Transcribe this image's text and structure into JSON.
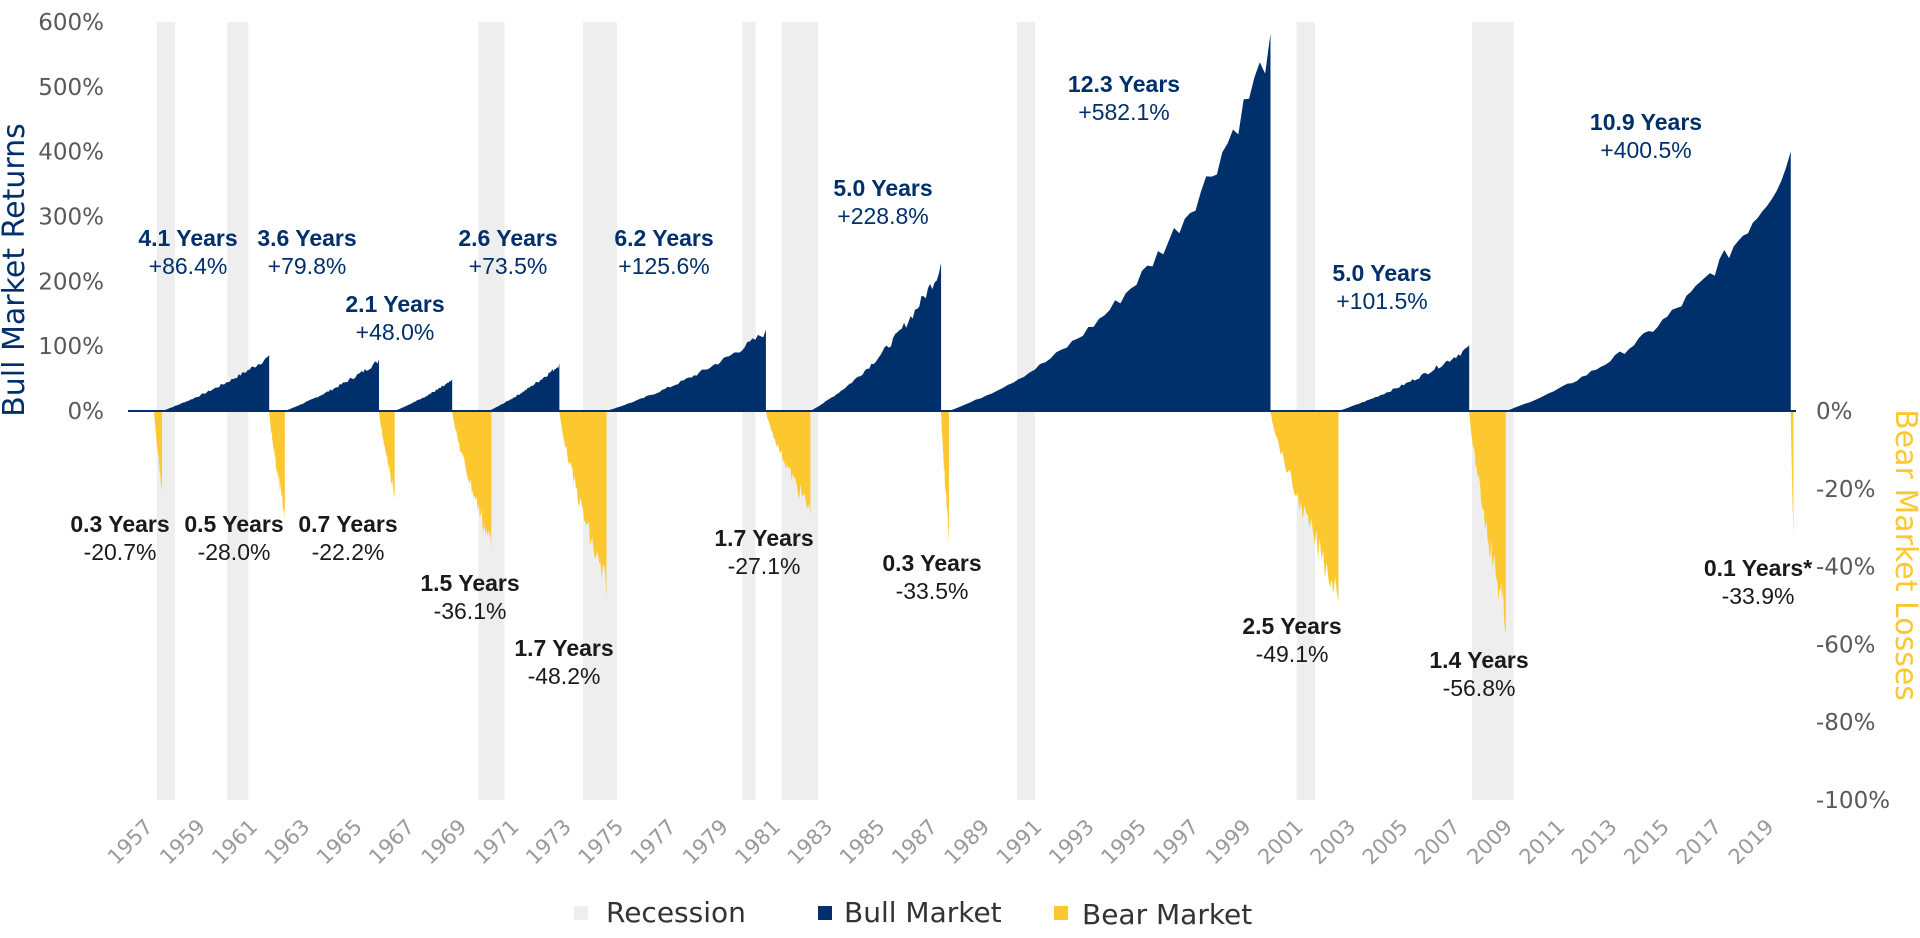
{
  "chart_data": {
    "type": "area",
    "ylabel_left": "Bull Market Returns",
    "ylabel_right": "Bear Market Losses",
    "left_axis": {
      "ticks": [
        "600%",
        "500%",
        "400%",
        "300%",
        "200%",
        "100%",
        "0%"
      ],
      "range": [
        0,
        600
      ]
    },
    "right_axis": {
      "ticks": [
        "0%",
        "-20%",
        "-40%",
        "-60%",
        "-80%",
        "-100%"
      ],
      "range": [
        -100,
        0
      ]
    },
    "x_ticks": [
      "1957",
      "1959",
      "1961",
      "1963",
      "1965",
      "1967",
      "1969",
      "1971",
      "1973",
      "1975",
      "1977",
      "1979",
      "1981",
      "1983",
      "1985",
      "1987",
      "1989",
      "1991",
      "1993",
      "1995",
      "1997",
      "1999",
      "2001",
      "2003",
      "2005",
      "2007",
      "2009",
      "2011",
      "2013",
      "2015",
      "2017",
      "2019"
    ],
    "x_range": [
      1956.5,
      2020.3
    ],
    "legend": [
      {
        "label": "Recession",
        "color": "#eeeeee"
      },
      {
        "label": "Bull Market",
        "color": "#00306b"
      },
      {
        "label": "Bear Market",
        "color": "#fdc82f"
      }
    ],
    "recessions": [
      [
        1957.6,
        1958.3
      ],
      [
        1960.3,
        1961.1
      ],
      [
        1969.9,
        1970.9
      ],
      [
        1973.9,
        1975.2
      ],
      [
        1980.0,
        1980.5
      ],
      [
        1981.5,
        1982.9
      ],
      [
        1990.5,
        1991.2
      ],
      [
        2001.2,
        2001.9
      ],
      [
        2007.9,
        2009.5
      ]
    ],
    "bull_markets": [
      {
        "start": 1957.8,
        "end": 1961.9,
        "duration": "4.1 Years",
        "return": "+86.4%",
        "peak": 86.4
      },
      {
        "start": 1962.5,
        "end": 1966.1,
        "duration": "3.6 Years",
        "return": "+79.8%",
        "peak": 79.8
      },
      {
        "start": 1966.7,
        "end": 1968.9,
        "duration": "2.1 Years",
        "return": "+48.0%",
        "peak": 48.0
      },
      {
        "start": 1970.3,
        "end": 1973.0,
        "duration": "2.6 Years",
        "return": "+73.5%",
        "peak": 73.5
      },
      {
        "start": 1974.8,
        "end": 1980.9,
        "duration": "6.2 Years",
        "return": "+125.6%",
        "peak": 125.6
      },
      {
        "start": 1982.6,
        "end": 1987.6,
        "duration": "5.0 Years",
        "return": "+228.8%",
        "peak": 228.8
      },
      {
        "start": 1987.9,
        "end": 2000.2,
        "duration": "12.3 Years",
        "return": "+582.1%",
        "peak": 582.1
      },
      {
        "start": 2002.8,
        "end": 2007.8,
        "duration": "5.0 Years",
        "return": "+101.5%",
        "peak": 101.5
      },
      {
        "start": 2009.2,
        "end": 2020.1,
        "duration": "10.9 Years",
        "return": "+400.5%",
        "peak": 400.5
      }
    ],
    "bear_markets": [
      {
        "start": 1957.5,
        "end": 1957.8,
        "duration": "0.3 Years",
        "loss": "-20.7%",
        "trough": -20.7
      },
      {
        "start": 1961.9,
        "end": 1962.5,
        "duration": "0.5 Years",
        "loss": "-28.0%",
        "trough": -28.0
      },
      {
        "start": 1966.1,
        "end": 1966.7,
        "duration": "0.7 Years",
        "loss": "-22.2%",
        "trough": -22.2
      },
      {
        "start": 1968.9,
        "end": 1970.4,
        "duration": "1.5 Years",
        "loss": "-36.1%",
        "trough": -36.1
      },
      {
        "start": 1973.0,
        "end": 1974.8,
        "duration": "1.7 Years",
        "loss": "-48.2%",
        "trough": -48.2
      },
      {
        "start": 1980.9,
        "end": 1982.6,
        "duration": "1.7 Years",
        "loss": "-27.1%",
        "trough": -27.1
      },
      {
        "start": 1987.6,
        "end": 1987.9,
        "duration": "0.3 Years",
        "loss": "-33.5%",
        "trough": -33.5
      },
      {
        "start": 2000.2,
        "end": 2002.8,
        "duration": "2.5 Years",
        "loss": "-49.1%",
        "trough": -49.1
      },
      {
        "start": 2007.8,
        "end": 2009.2,
        "duration": "1.4 Years",
        "loss": "-56.8%",
        "trough": -56.8
      },
      {
        "start": 2020.1,
        "end": 2020.2,
        "duration": "0.1 Years*",
        "loss": "-33.9%",
        "trough": -33.9
      }
    ],
    "colors": {
      "bull": "#00306b",
      "bear": "#fdc82f",
      "recession": "#eeeeee",
      "bull_text": "#00306b",
      "bear_text": "#1a1a1a",
      "right_axis_title": "#fdc82f"
    }
  }
}
